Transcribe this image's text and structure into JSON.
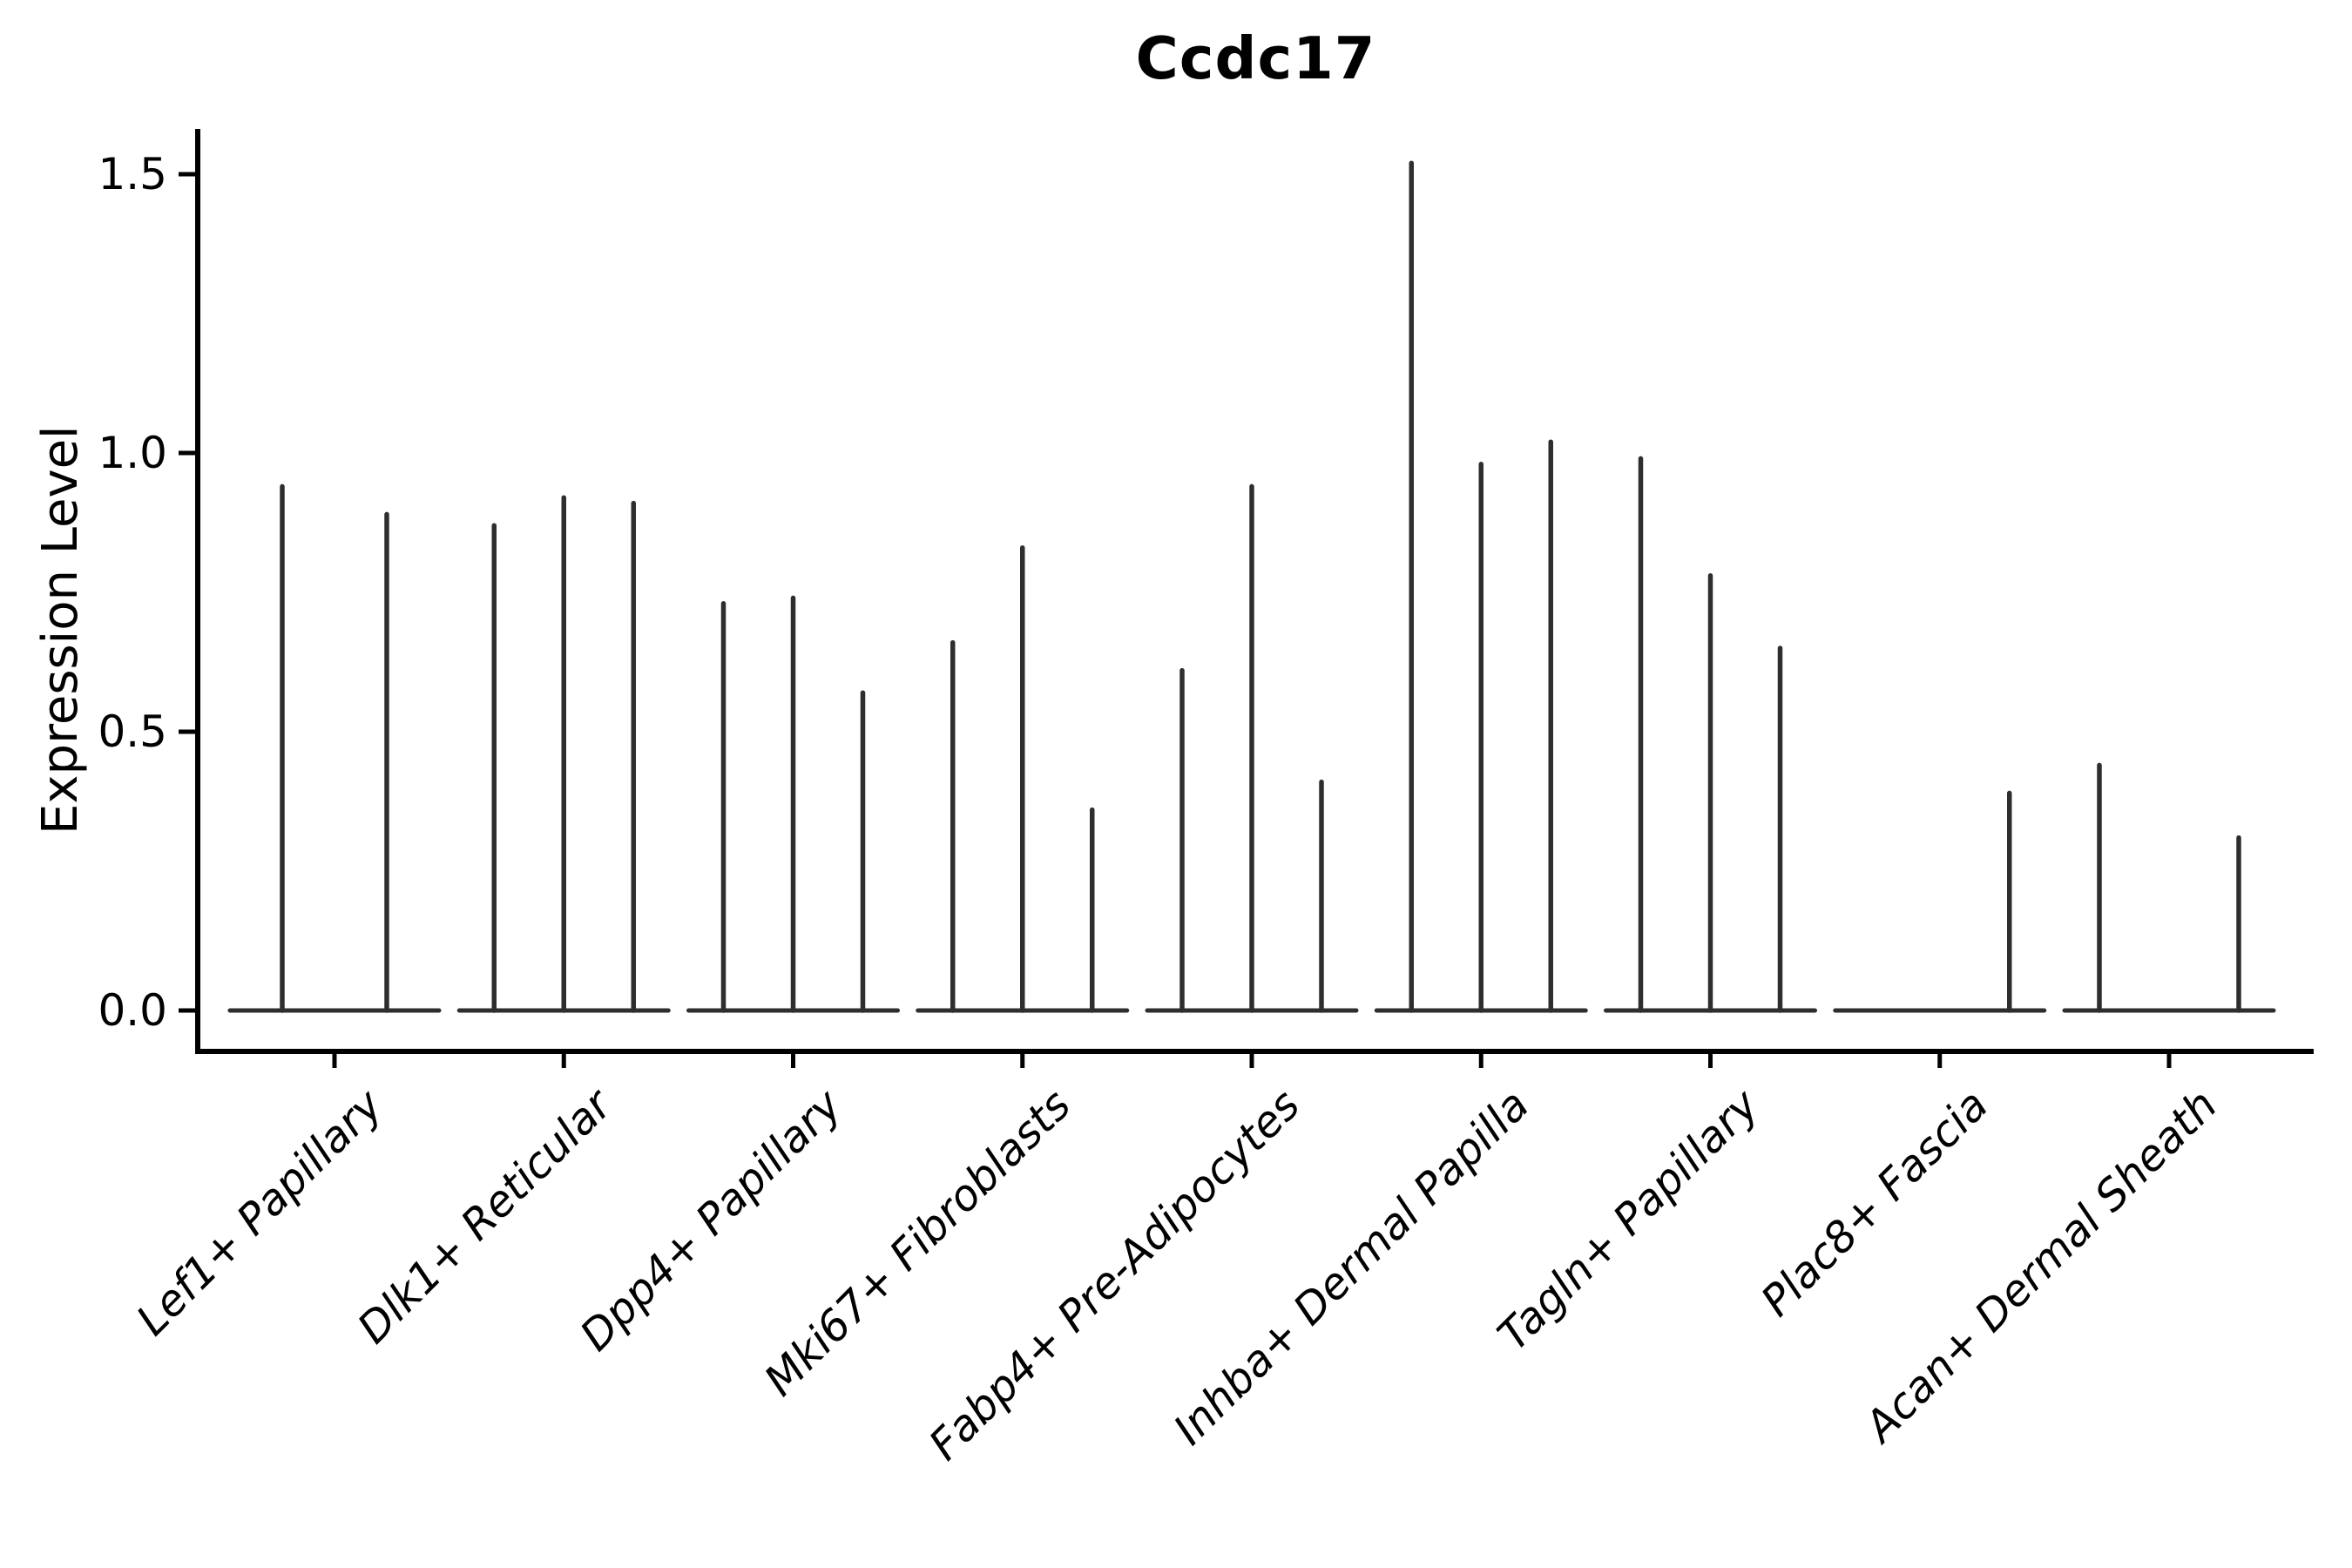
{
  "figure": {
    "background": "#ffffff",
    "axis_color": "#000000",
    "violin_color": "#2e2e2e"
  },
  "chart_data": {
    "type": "violin",
    "style": "spike-violin: flat zero baseline per group with thin vertical spikes to max expression",
    "title": "Ccdc17",
    "ylabel": "Expression Level",
    "xlabel": "",
    "grid": false,
    "legend": "none",
    "ylim": [
      0,
      1.55
    ],
    "yticks": [
      0.0,
      0.5,
      1.0,
      1.5
    ],
    "ytick_labels": [
      "0.0",
      "0.5",
      "1.0",
      "1.5"
    ],
    "categories": [
      "Lef1+ Papillary",
      "Dlk1+ Reticular",
      "Dpp4+ Papillary",
      "Mki67+ Fibroblasts",
      "Fabp4+ Pre-Adipocytes",
      "Inhba+ Dermal Papilla",
      "Tagln+ Papillary",
      "Plac8+ Fascia",
      "Acan+ Dermal Sheath"
    ],
    "groups": [
      {
        "category": "Lef1+ Papillary",
        "violin_max": [
          0.94,
          0.89
        ]
      },
      {
        "category": "Dlk1+ Reticular",
        "violin_max": [
          0.87,
          0.92,
          0.91
        ]
      },
      {
        "category": "Dpp4+ Papillary",
        "violin_max": [
          0.73,
          0.74,
          0.57
        ]
      },
      {
        "category": "Mki67+ Fibroblasts",
        "violin_max": [
          0.66,
          0.83,
          0.36
        ]
      },
      {
        "category": "Fabp4+ Pre-Adipocytes",
        "violin_max": [
          0.61,
          0.94,
          0.41
        ]
      },
      {
        "category": "Inhba+ Dermal Papilla",
        "violin_max": [
          1.52,
          0.98,
          1.02
        ]
      },
      {
        "category": "Tagln+ Papillary",
        "violin_max": [
          0.99,
          0.78,
          0.65
        ]
      },
      {
        "category": "Plac8+ Fascia",
        "violin_max": [
          0.0,
          0.0,
          0.39
        ]
      },
      {
        "category": "Acan+ Dermal Sheath",
        "violin_max": [
          0.44,
          0.0,
          0.31
        ]
      }
    ]
  }
}
